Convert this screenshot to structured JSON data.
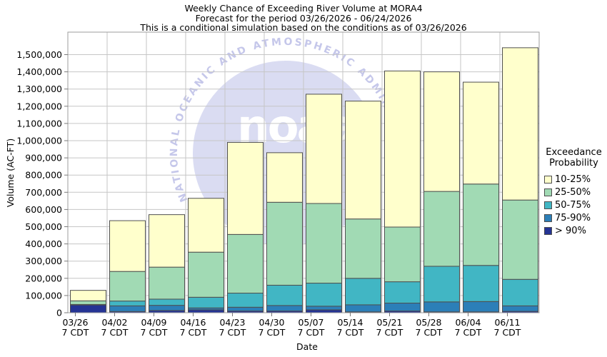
{
  "title": {
    "line1": "Weekly Chance of Exceeding River Volume at MORA4",
    "line2": "Forecast for the period 03/26/2026 - 06/24/2026",
    "line3": "This is a conditional simulation based on the conditions as of 03/26/2026"
  },
  "y_axis": {
    "label": "Volume (AC-FT)"
  },
  "x_axis": {
    "label": "Date"
  },
  "legend": {
    "title_line1": "Exceedance",
    "title_line2": "Probability",
    "items": [
      {
        "label": "10-25%",
        "color": "#FFFFCC"
      },
      {
        "label": "25-50%",
        "color": "#A1DAB4"
      },
      {
        "label": "50-75%",
        "color": "#41B6C4"
      },
      {
        "label": "75-90%",
        "color": "#2C7FB8"
      },
      {
        "label": "> 90%",
        "color": "#253494"
      }
    ]
  },
  "watermark": {
    "arc_text": "NATIONAL OCEANIC AND ATMOSPHERIC ADMINISTRATION",
    "logo_text": "noaa",
    "circle_color": "#dadcf2",
    "arc_text_color": "#c5c7ea",
    "logo_text_color": "#ffffff"
  },
  "chart_data": {
    "type": "bar",
    "stacked": true,
    "title": "Weekly Chance of Exceeding River Volume at MORA4",
    "xlabel": "Date",
    "ylabel": "Volume (AC-FT)",
    "ylim": [
      0,
      1630000
    ],
    "y_tick_step": 100000,
    "y_tick_max": 1500000,
    "grid": true,
    "legend_title": "Exceedance Probability",
    "legend_position": "right",
    "x_tick_sub_label": "7 CDT",
    "categories": [
      "03/26",
      "04/02",
      "04/09",
      "04/16",
      "04/23",
      "04/30",
      "05/07",
      "05/14",
      "05/21",
      "05/28",
      "06/04",
      "06/11"
    ],
    "series": [
      {
        "name": "> 90%",
        "color": "#253494",
        "values": [
          45000,
          7000,
          13000,
          17000,
          10000,
          10000,
          17000,
          5000,
          10000,
          5000,
          5000,
          8000
        ]
      },
      {
        "name": "75-90%",
        "color": "#2C7FB8",
        "values": [
          1000,
          33000,
          30000,
          11000,
          22000,
          32000,
          21000,
          41000,
          46000,
          58000,
          60000,
          32000
        ]
      },
      {
        "name": "50-75%",
        "color": "#41B6C4",
        "values": [
          2000,
          28000,
          36000,
          62000,
          82000,
          118000,
          134000,
          154000,
          124000,
          207000,
          210000,
          154000
        ]
      },
      {
        "name": "25-50%",
        "color": "#A1DAB4",
        "values": [
          21000,
          172000,
          186000,
          262000,
          341000,
          482000,
          463000,
          345000,
          318000,
          435000,
          473000,
          461000
        ]
      },
      {
        "name": "10-25%",
        "color": "#FFFFCC",
        "values": [
          61000,
          295000,
          305000,
          313000,
          535000,
          288000,
          635000,
          685000,
          907000,
          695000,
          592000,
          885000
        ]
      }
    ],
    "bar_totals": [
      130000,
      535000,
      570000,
      665000,
      990000,
      930000,
      1270000,
      1230000,
      1405000,
      1400000,
      1340000,
      1540000
    ]
  },
  "style_colors": {
    "gridline": "#c6c6c6",
    "plot_border": "#9c9c9c",
    "bar_outline": "#4f4f4f",
    "tick": "#7a7a7a"
  }
}
